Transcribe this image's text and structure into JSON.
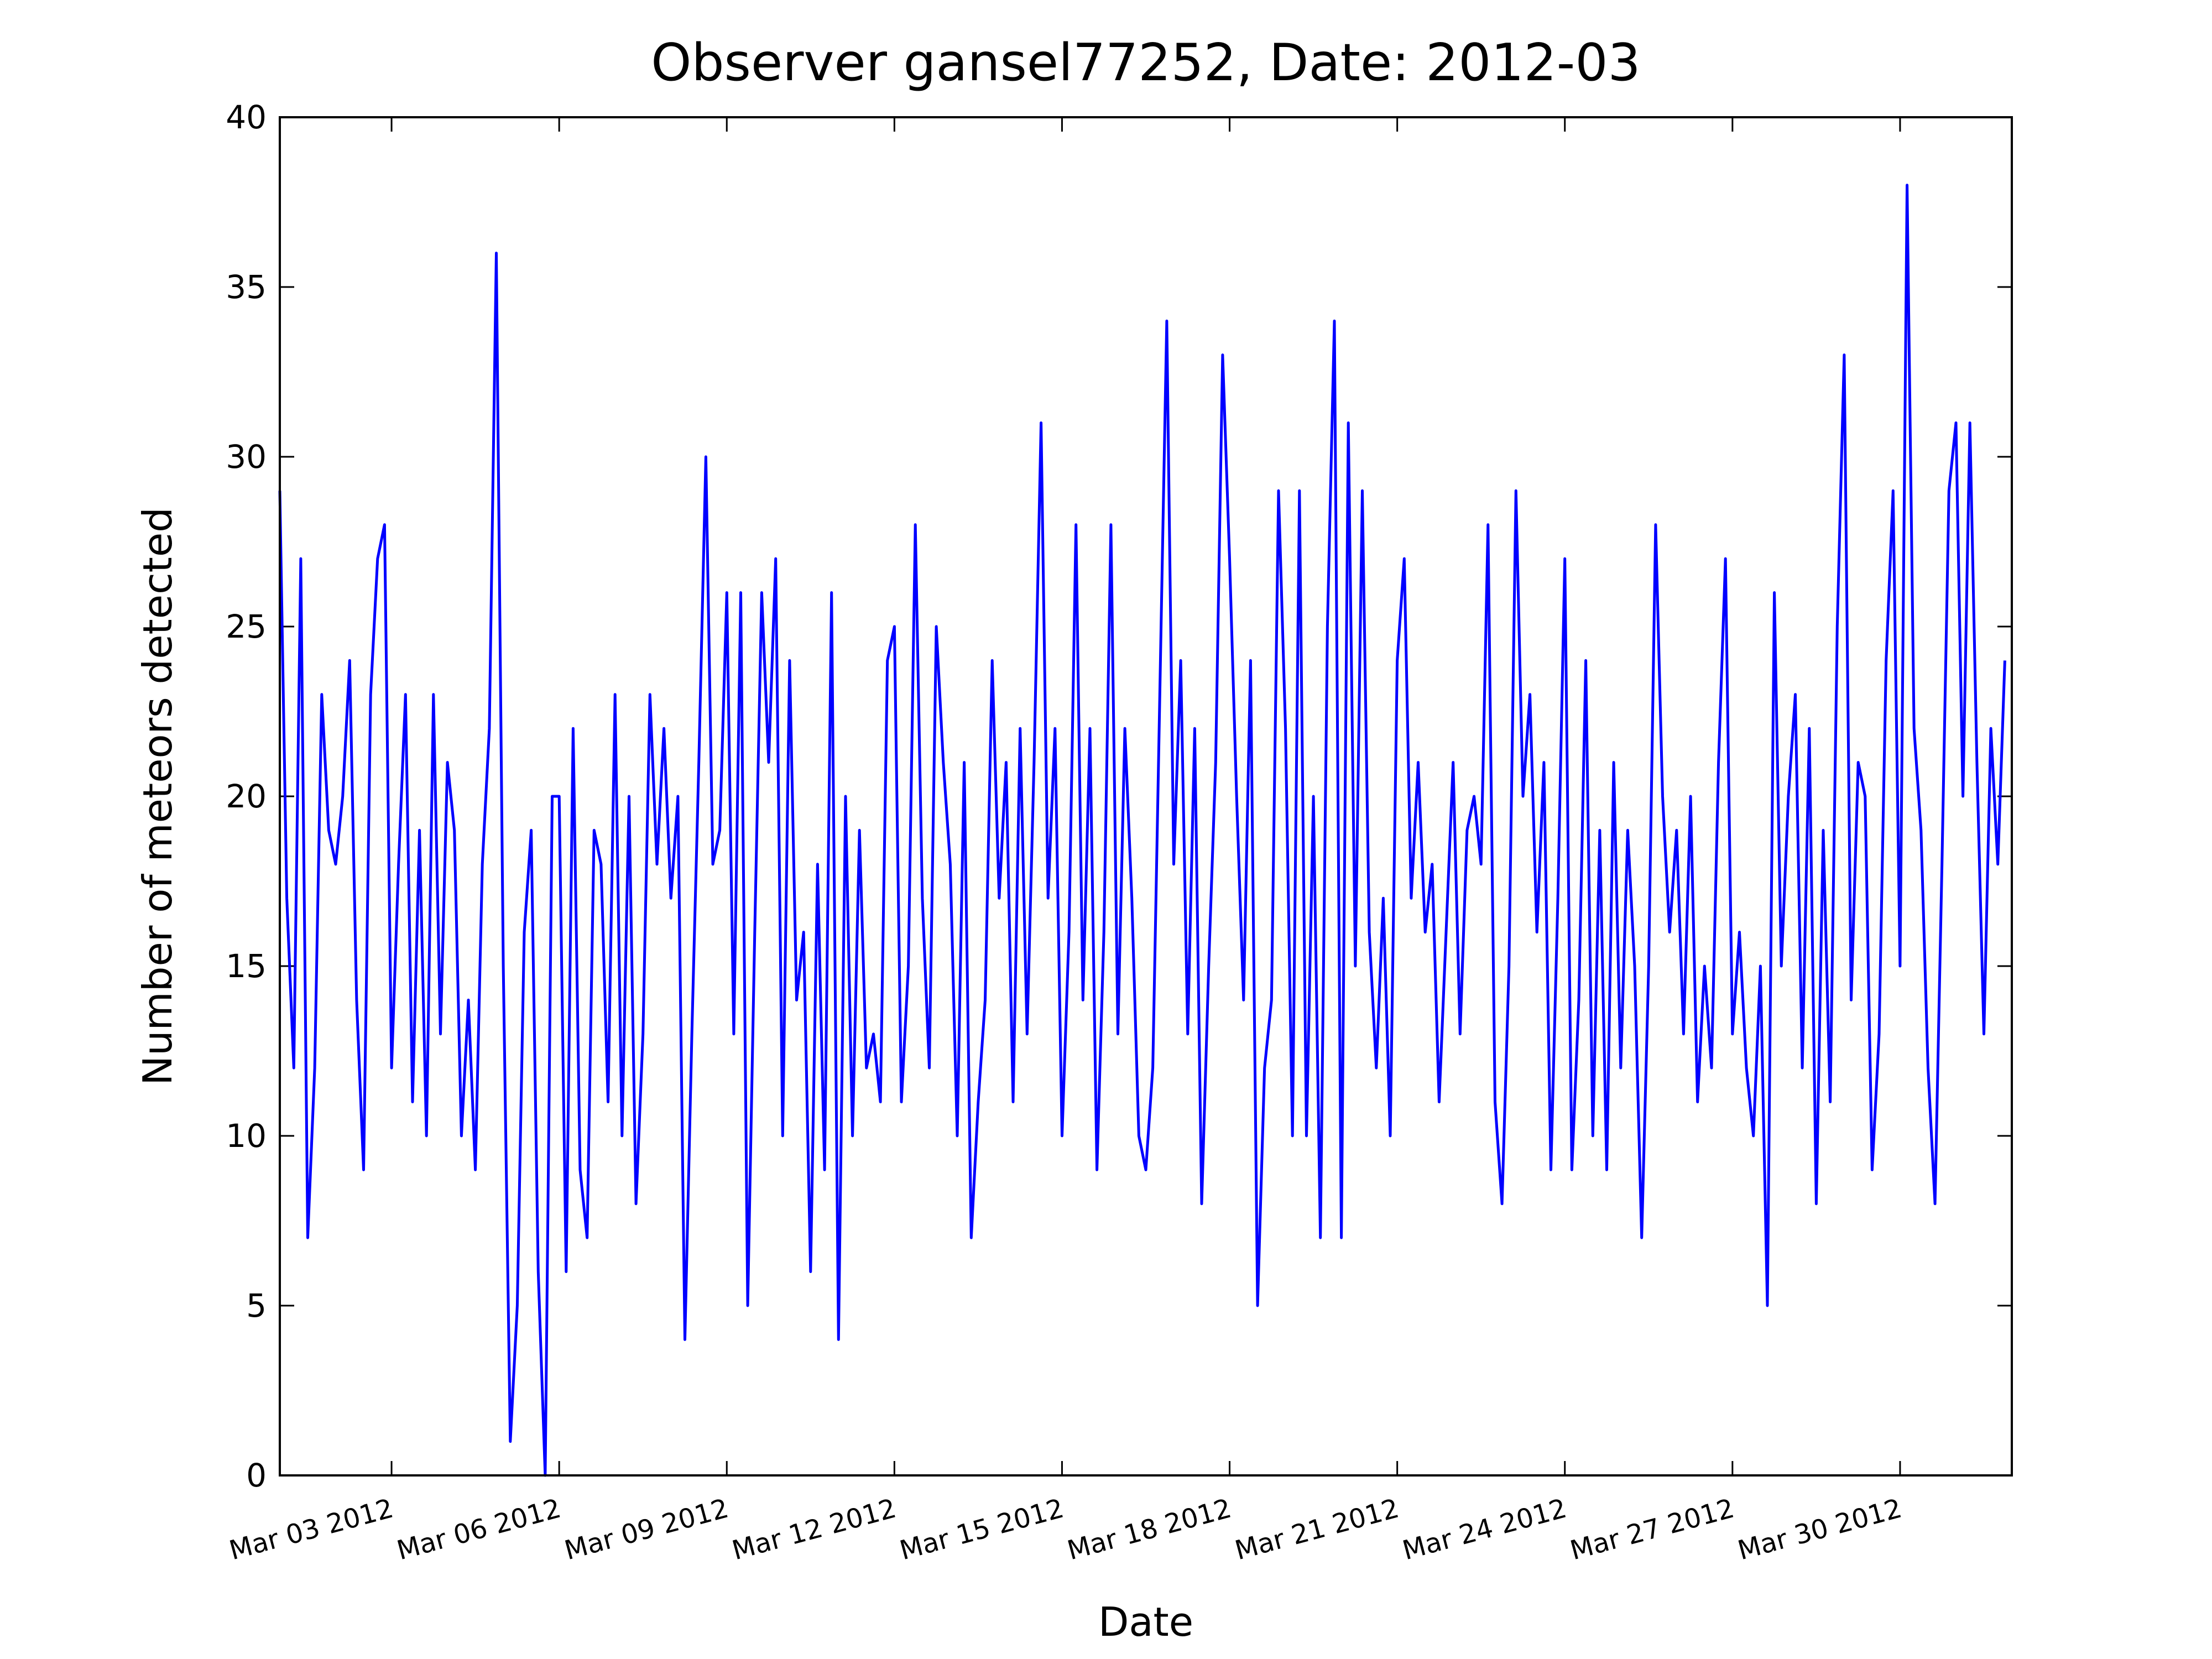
{
  "chart_data": {
    "type": "line",
    "title": "Observer gansel77252, Date: 2012-03",
    "xlabel": "Date",
    "ylabel": "Number of meteors detected",
    "x": [
      "2012-03-01 00:00",
      "2012-03-01 03:00",
      "2012-03-01 06:00",
      "2012-03-01 09:00",
      "2012-03-01 12:00",
      "2012-03-01 15:00",
      "2012-03-01 18:00",
      "2012-03-01 21:00",
      "2012-03-02 00:00",
      "2012-03-02 03:00",
      "2012-03-02 06:00",
      "2012-03-02 09:00",
      "2012-03-02 12:00",
      "2012-03-02 15:00",
      "2012-03-02 18:00",
      "2012-03-02 21:00",
      "2012-03-03 00:00",
      "2012-03-03 03:00",
      "2012-03-03 06:00",
      "2012-03-03 09:00",
      "2012-03-03 12:00",
      "2012-03-03 15:00",
      "2012-03-03 18:00",
      "2012-03-03 21:00",
      "2012-03-04 00:00",
      "2012-03-04 03:00",
      "2012-03-04 06:00",
      "2012-03-04 09:00",
      "2012-03-04 12:00",
      "2012-03-04 15:00",
      "2012-03-04 18:00",
      "2012-03-04 21:00",
      "2012-03-05 00:00",
      "2012-03-05 03:00",
      "2012-03-05 06:00",
      "2012-03-05 09:00",
      "2012-03-05 12:00",
      "2012-03-05 15:00",
      "2012-03-05 18:00",
      "2012-03-05 21:00",
      "2012-03-06 00:00",
      "2012-03-06 03:00",
      "2012-03-06 06:00",
      "2012-03-06 09:00",
      "2012-03-06 12:00",
      "2012-03-06 15:00",
      "2012-03-06 18:00",
      "2012-03-06 21:00",
      "2012-03-07 00:00",
      "2012-03-07 03:00",
      "2012-03-07 06:00",
      "2012-03-07 09:00",
      "2012-03-07 12:00",
      "2012-03-07 15:00",
      "2012-03-07 18:00",
      "2012-03-07 21:00",
      "2012-03-08 00:00",
      "2012-03-08 03:00",
      "2012-03-08 06:00",
      "2012-03-08 09:00",
      "2012-03-08 12:00",
      "2012-03-08 15:00",
      "2012-03-08 18:00",
      "2012-03-08 21:00",
      "2012-03-09 00:00",
      "2012-03-09 03:00",
      "2012-03-09 06:00",
      "2012-03-09 09:00",
      "2012-03-09 12:00",
      "2012-03-09 15:00",
      "2012-03-09 18:00",
      "2012-03-09 21:00",
      "2012-03-10 00:00",
      "2012-03-10 03:00",
      "2012-03-10 06:00",
      "2012-03-10 09:00",
      "2012-03-10 12:00",
      "2012-03-10 15:00",
      "2012-03-10 18:00",
      "2012-03-10 21:00",
      "2012-03-11 00:00",
      "2012-03-11 03:00",
      "2012-03-11 06:00",
      "2012-03-11 09:00",
      "2012-03-11 12:00",
      "2012-03-11 15:00",
      "2012-03-11 18:00",
      "2012-03-11 21:00",
      "2012-03-12 00:00",
      "2012-03-12 03:00",
      "2012-03-12 06:00",
      "2012-03-12 09:00",
      "2012-03-12 12:00",
      "2012-03-12 15:00",
      "2012-03-12 18:00",
      "2012-03-12 21:00",
      "2012-03-13 00:00",
      "2012-03-13 03:00",
      "2012-03-13 06:00",
      "2012-03-13 09:00",
      "2012-03-13 12:00",
      "2012-03-13 15:00",
      "2012-03-13 18:00",
      "2012-03-13 21:00",
      "2012-03-14 00:00",
      "2012-03-14 03:00",
      "2012-03-14 06:00",
      "2012-03-14 09:00",
      "2012-03-14 12:00",
      "2012-03-14 15:00",
      "2012-03-14 18:00",
      "2012-03-14 21:00",
      "2012-03-15 00:00",
      "2012-03-15 03:00",
      "2012-03-15 06:00",
      "2012-03-15 09:00",
      "2012-03-15 12:00",
      "2012-03-15 15:00",
      "2012-03-15 18:00",
      "2012-03-15 21:00",
      "2012-03-16 00:00",
      "2012-03-16 03:00",
      "2012-03-16 06:00",
      "2012-03-16 09:00",
      "2012-03-16 12:00",
      "2012-03-16 15:00",
      "2012-03-16 18:00",
      "2012-03-16 21:00",
      "2012-03-17 00:00",
      "2012-03-17 03:00",
      "2012-03-17 06:00",
      "2012-03-17 09:00",
      "2012-03-17 12:00",
      "2012-03-17 15:00",
      "2012-03-17 18:00",
      "2012-03-17 21:00",
      "2012-03-18 00:00",
      "2012-03-18 03:00",
      "2012-03-18 06:00",
      "2012-03-18 09:00",
      "2012-03-18 12:00",
      "2012-03-18 15:00",
      "2012-03-18 18:00",
      "2012-03-18 21:00",
      "2012-03-19 00:00",
      "2012-03-19 03:00",
      "2012-03-19 06:00",
      "2012-03-19 09:00",
      "2012-03-19 12:00",
      "2012-03-19 15:00",
      "2012-03-19 18:00",
      "2012-03-19 21:00",
      "2012-03-20 00:00",
      "2012-03-20 03:00",
      "2012-03-20 06:00",
      "2012-03-20 09:00",
      "2012-03-20 12:00",
      "2012-03-20 15:00",
      "2012-03-20 18:00",
      "2012-03-20 21:00",
      "2012-03-21 00:00",
      "2012-03-21 03:00",
      "2012-03-21 06:00",
      "2012-03-21 09:00",
      "2012-03-21 12:00",
      "2012-03-21 15:00",
      "2012-03-21 18:00",
      "2012-03-21 21:00",
      "2012-03-22 00:00",
      "2012-03-22 03:00",
      "2012-03-22 06:00",
      "2012-03-22 09:00",
      "2012-03-22 12:00",
      "2012-03-22 15:00",
      "2012-03-22 18:00",
      "2012-03-22 21:00",
      "2012-03-23 00:00",
      "2012-03-23 03:00",
      "2012-03-23 06:00",
      "2012-03-23 09:00",
      "2012-03-23 12:00",
      "2012-03-23 15:00",
      "2012-03-23 18:00",
      "2012-03-23 21:00",
      "2012-03-24 00:00",
      "2012-03-24 03:00",
      "2012-03-24 06:00",
      "2012-03-24 09:00",
      "2012-03-24 12:00",
      "2012-03-24 15:00",
      "2012-03-24 18:00",
      "2012-03-24 21:00",
      "2012-03-25 00:00",
      "2012-03-25 03:00",
      "2012-03-25 06:00",
      "2012-03-25 09:00",
      "2012-03-25 12:00",
      "2012-03-25 15:00",
      "2012-03-25 18:00",
      "2012-03-25 21:00",
      "2012-03-26 00:00",
      "2012-03-26 03:00",
      "2012-03-26 06:00",
      "2012-03-26 09:00",
      "2012-03-26 12:00",
      "2012-03-26 15:00",
      "2012-03-26 18:00",
      "2012-03-26 21:00",
      "2012-03-27 00:00",
      "2012-03-27 03:00",
      "2012-03-27 06:00",
      "2012-03-27 09:00",
      "2012-03-27 12:00",
      "2012-03-27 15:00",
      "2012-03-27 18:00",
      "2012-03-27 21:00",
      "2012-03-28 00:00",
      "2012-03-28 03:00",
      "2012-03-28 06:00",
      "2012-03-28 09:00",
      "2012-03-28 12:00",
      "2012-03-28 15:00",
      "2012-03-28 18:00",
      "2012-03-28 21:00",
      "2012-03-29 00:00",
      "2012-03-29 03:00",
      "2012-03-29 06:00",
      "2012-03-29 09:00",
      "2012-03-29 12:00",
      "2012-03-29 15:00",
      "2012-03-29 18:00",
      "2012-03-29 21:00",
      "2012-03-30 00:00",
      "2012-03-30 03:00",
      "2012-03-30 06:00",
      "2012-03-30 09:00",
      "2012-03-30 12:00",
      "2012-03-30 15:00",
      "2012-03-30 18:00",
      "2012-03-30 21:00",
      "2012-03-31 00:00",
      "2012-03-31 03:00",
      "2012-03-31 06:00",
      "2012-03-31 09:00",
      "2012-03-31 12:00",
      "2012-03-31 15:00",
      "2012-03-31 18:00",
      "2012-03-31 21:00"
    ],
    "series": [
      {
        "color": "#0000ff",
        "values": [
          29,
          17,
          12,
          27,
          7,
          12,
          23,
          19,
          18,
          20,
          24,
          14,
          9,
          23,
          27,
          28,
          12,
          18,
          23,
          11,
          19,
          10,
          23,
          13,
          21,
          19,
          10,
          14,
          9,
          18,
          22,
          36,
          15,
          1,
          5,
          16,
          19,
          6,
          0,
          20,
          20,
          6,
          22,
          9,
          7,
          19,
          18,
          11,
          23,
          10,
          20,
          8,
          13,
          23,
          18,
          22,
          17,
          20,
          4,
          13,
          21,
          30,
          18,
          19,
          26,
          13,
          26,
          5,
          16,
          26,
          21,
          27,
          10,
          24,
          14,
          16,
          6,
          18,
          9,
          26,
          4,
          20,
          10,
          19,
          12,
          13,
          11,
          24,
          25,
          11,
          15,
          28,
          17,
          12,
          25,
          21,
          18,
          10,
          21,
          7,
          11,
          14,
          24,
          17,
          21,
          11,
          22,
          13,
          21,
          31,
          17,
          22,
          10,
          16,
          28,
          14,
          22,
          9,
          16,
          28,
          13,
          22,
          17,
          10,
          9,
          12,
          23,
          34,
          18,
          24,
          13,
          22,
          8,
          15,
          21,
          33,
          27,
          20,
          14,
          24,
          5,
          12,
          14,
          29,
          22,
          10,
          29,
          10,
          20,
          7,
          25,
          34,
          7,
          31,
          15,
          29,
          16,
          12,
          17,
          10,
          24,
          27,
          17,
          21,
          16,
          18,
          11,
          16,
          21,
          13,
          19,
          20,
          18,
          28,
          11,
          8,
          15,
          29,
          20,
          23,
          16,
          21,
          9,
          17,
          27,
          9,
          14,
          24,
          10,
          19,
          9,
          21,
          12,
          19,
          15,
          7,
          15,
          28,
          20,
          16,
          19,
          13,
          20,
          11,
          15,
          12,
          21,
          27,
          13,
          16,
          12,
          10,
          15,
          5,
          26,
          15,
          20,
          23,
          12,
          22,
          8,
          19,
          11,
          25,
          33,
          14,
          21,
          20,
          9,
          13,
          24,
          29,
          15,
          38,
          22,
          19,
          12,
          8,
          18,
          29,
          31,
          20,
          31,
          21,
          13,
          22,
          18,
          24
        ]
      }
    ],
    "xlim": [
      "2012-03-01 00:00",
      "2012-04-01 00:00"
    ],
    "xticks": [
      {
        "value": "2012-03-03 00:00",
        "label": "Mar 03 2012"
      },
      {
        "value": "2012-03-06 00:00",
        "label": "Mar 06 2012"
      },
      {
        "value": "2012-03-09 00:00",
        "label": "Mar 09 2012"
      },
      {
        "value": "2012-03-12 00:00",
        "label": "Mar 12 2012"
      },
      {
        "value": "2012-03-15 00:00",
        "label": "Mar 15 2012"
      },
      {
        "value": "2012-03-18 00:00",
        "label": "Mar 18 2012"
      },
      {
        "value": "2012-03-21 00:00",
        "label": "Mar 21 2012"
      },
      {
        "value": "2012-03-24 00:00",
        "label": "Mar 24 2012"
      },
      {
        "value": "2012-03-27 00:00",
        "label": "Mar 27 2012"
      },
      {
        "value": "2012-03-30 00:00",
        "label": "Mar 30 2012"
      }
    ],
    "ylim": [
      0,
      40
    ],
    "yticks": [
      0,
      5,
      10,
      15,
      20,
      25,
      30,
      35,
      40
    ],
    "grid": false
  }
}
